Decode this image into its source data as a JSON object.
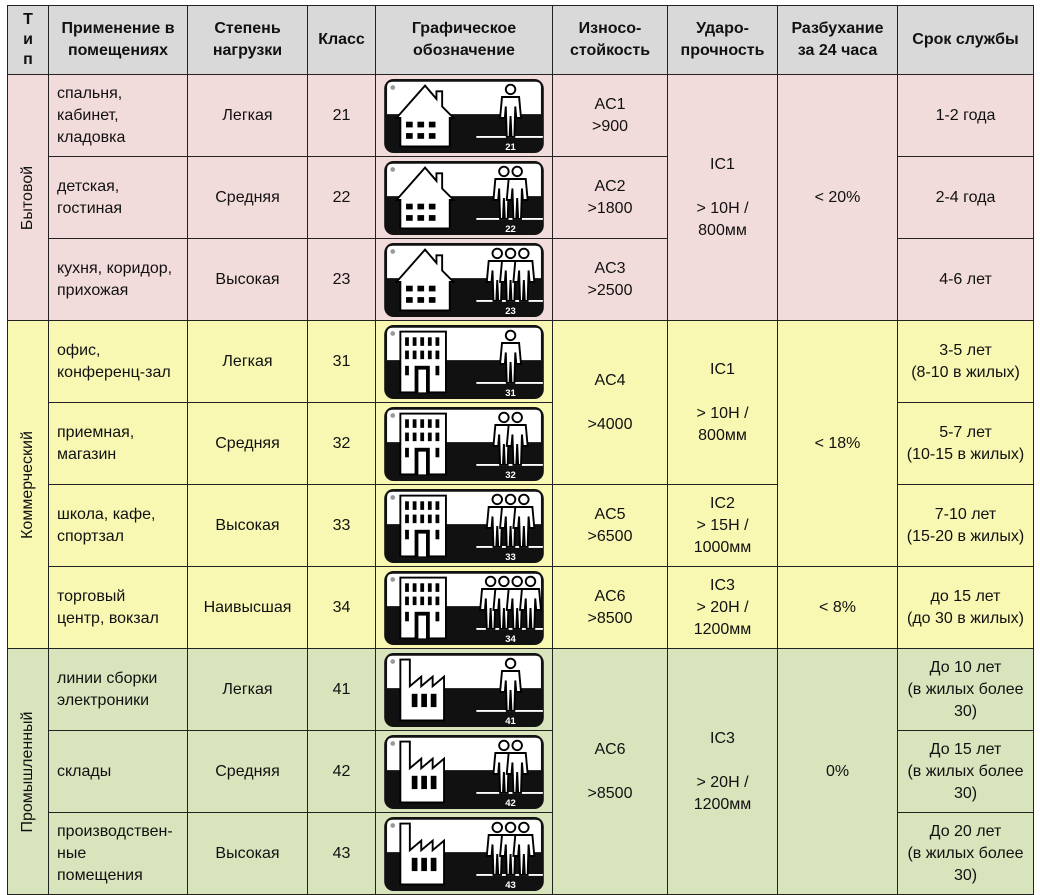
{
  "header": [
    "Т\nи\nп",
    "Применение в\nпомещениях",
    "Степень\nнагрузки",
    "Класс",
    "Графическое\nобозначение",
    "Износо-\nстойкость",
    "Ударо-\nпрочность",
    "Разбухание\nза 24 часа",
    "Срок службы"
  ],
  "types": [
    "Бытовой",
    "Коммерческий",
    "Промышленный"
  ],
  "rows": [
    {
      "use": "спальня,\nкабинет,\nкладовка",
      "load": "Легкая",
      "class": "21",
      "life": "1-2 года",
      "icon": {
        "building": "house",
        "people": 1
      }
    },
    {
      "use": "детская,\nгостиная",
      "load": "Средняя",
      "class": "22",
      "life": "2-4 года",
      "icon": {
        "building": "house",
        "people": 2
      }
    },
    {
      "use": "кухня, коридор,\nприхожая",
      "load": "Высокая",
      "class": "23",
      "life": "4-6 лет",
      "icon": {
        "building": "house",
        "people": 3
      }
    },
    {
      "use": "офис,\nконференц-зал",
      "load": "Легкая",
      "class": "31",
      "life": "3-5 лет\n(8-10 в жилых)",
      "icon": {
        "building": "office",
        "people": 1
      }
    },
    {
      "use": "приемная,\nмагазин",
      "load": "Средняя",
      "class": "32",
      "life": "5-7 лет\n(10-15 в жилых)",
      "icon": {
        "building": "office",
        "people": 2
      }
    },
    {
      "use": "школа, кафе,\nспортзал",
      "load": "Высокая",
      "class": "33",
      "life": "7-10 лет\n(15-20 в жилых)",
      "icon": {
        "building": "office",
        "people": 3
      }
    },
    {
      "use": "торговый\nцентр, вокзал",
      "load": "Наивысшая",
      "class": "34",
      "life": "до 15 лет\n(до 30 в жилых)",
      "icon": {
        "building": "office",
        "people": 4
      }
    },
    {
      "use": "линии сборки\nэлектроники",
      "load": "Легкая",
      "class": "41",
      "life": "До 10 лет\n(в жилых более\n30)",
      "icon": {
        "building": "factory",
        "people": 1
      }
    },
    {
      "use": "склады",
      "load": "Средняя",
      "class": "42",
      "life": "До 15 лет\n(в жилых более\n30)",
      "icon": {
        "building": "factory",
        "people": 2
      }
    },
    {
      "use": "производствен-\nные\nпомещения",
      "load": "Высокая",
      "class": "43",
      "life": "До 20 лет\n(в жилых более\n30)",
      "icon": {
        "building": "factory",
        "people": 3
      }
    }
  ],
  "wear": [
    "AC1\n>900",
    "AC2\n>1800",
    "AC3\n>2500",
    "AC4\n\n>4000",
    "AC5\n>6500",
    "AC6\n>8500",
    "AC6\n\n>8500"
  ],
  "impact": [
    "IC1\n\n> 10Н /\n800мм",
    "IC1\n\n> 10Н /\n800мм",
    "IC2\n> 15Н /\n1000мм",
    "IC3\n> 20Н /\n1200мм",
    "IC3\n\n> 20Н /\n1200мм"
  ],
  "swelling": [
    "< 20%",
    "< 18%",
    "< 8%",
    "0%"
  ],
  "colors": {
    "household": "#f2dcdb",
    "commercial": "#f8f8b2",
    "industrial": "#d8e4bc",
    "header": "#d9d9d9"
  }
}
